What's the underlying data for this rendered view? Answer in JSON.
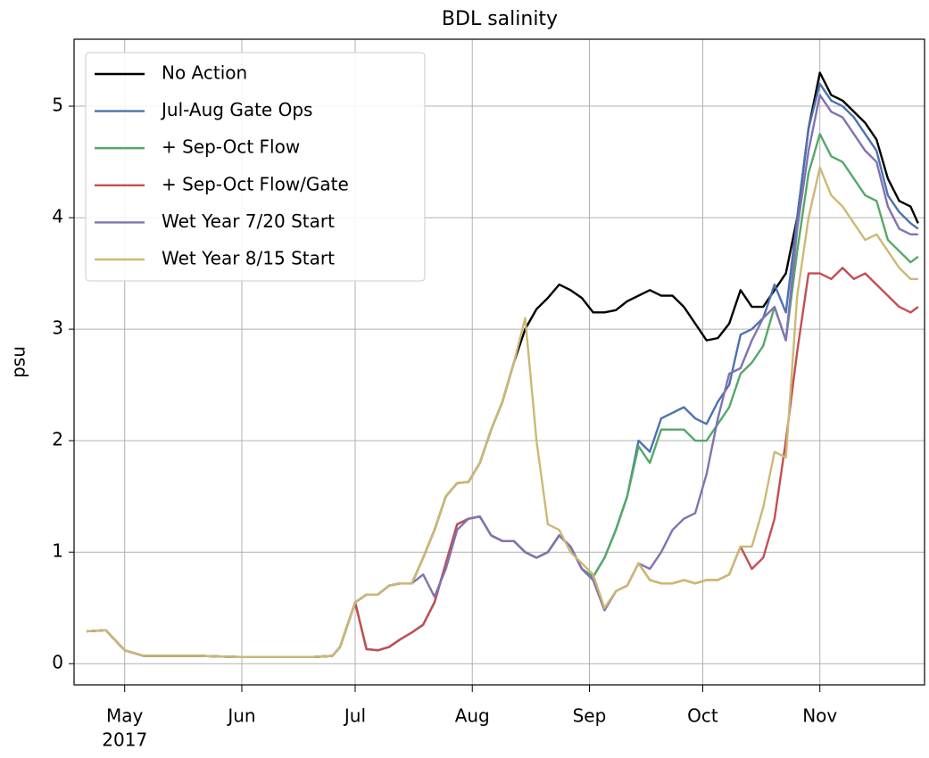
{
  "chart_data": {
    "type": "line",
    "title": "BDL salinity",
    "ylabel": "psu",
    "x_year_label": "2017",
    "x": [
      111,
      116,
      121,
      126,
      131,
      141,
      151,
      161,
      171,
      176,
      178,
      180,
      182,
      185,
      188,
      191,
      194,
      197,
      200,
      203,
      206,
      209,
      212,
      215,
      218,
      221,
      224,
      227,
      230,
      233,
      236,
      239,
      242,
      245,
      248,
      251,
      254,
      257,
      260,
      263,
      266,
      269,
      272,
      275,
      278,
      281,
      284,
      287,
      290,
      293,
      296,
      299,
      302,
      305,
      308,
      311,
      314,
      317,
      320,
      323,
      326,
      329,
      331
    ],
    "xlim": [
      107.6,
      332.7
    ],
    "xticks": [
      {
        "value": 121,
        "label": "May"
      },
      {
        "value": 152,
        "label": "Jun"
      },
      {
        "value": 182,
        "label": "Jul"
      },
      {
        "value": 213,
        "label": "Aug"
      },
      {
        "value": 244,
        "label": "Sep"
      },
      {
        "value": 274,
        "label": "Oct"
      },
      {
        "value": 305,
        "label": "Nov"
      }
    ],
    "ylim": [
      -0.19,
      5.6
    ],
    "yticks": [
      0,
      1,
      2,
      3,
      4,
      5
    ],
    "grid": true,
    "legend": "upper left",
    "series": [
      {
        "name": "No Action",
        "color": "#000000",
        "values": [
          0.29,
          0.3,
          0.12,
          0.07,
          0.07,
          0.07,
          0.06,
          0.06,
          0.06,
          0.07,
          0.15,
          0.35,
          0.55,
          0.62,
          0.62,
          0.7,
          0.72,
          0.72,
          0.95,
          1.2,
          1.5,
          1.62,
          1.63,
          1.8,
          2.1,
          2.35,
          2.7,
          3.0,
          3.18,
          3.28,
          3.4,
          3.35,
          3.28,
          3.15,
          3.15,
          3.17,
          3.25,
          3.3,
          3.35,
          3.3,
          3.3,
          3.2,
          3.05,
          2.9,
          2.92,
          3.05,
          3.35,
          3.2,
          3.2,
          3.35,
          3.5,
          4.0,
          4.8,
          5.3,
          5.1,
          5.05,
          4.95,
          4.85,
          4.7,
          4.35,
          4.15,
          4.1,
          3.95
        ]
      },
      {
        "name": "Jul-Aug Gate Ops",
        "color": "#4c72b0",
        "values": [
          0.29,
          0.3,
          0.12,
          0.07,
          0.07,
          0.07,
          0.06,
          0.06,
          0.06,
          0.07,
          0.15,
          0.35,
          0.55,
          0.13,
          0.12,
          0.15,
          0.22,
          0.28,
          0.35,
          0.55,
          0.9,
          1.25,
          1.3,
          1.32,
          1.15,
          1.1,
          1.1,
          1.0,
          0.95,
          1.0,
          1.15,
          1.05,
          0.85,
          0.78,
          0.95,
          1.2,
          1.5,
          2.0,
          1.9,
          2.2,
          2.25,
          2.3,
          2.2,
          2.15,
          2.35,
          2.5,
          2.95,
          3.0,
          3.1,
          3.4,
          3.15,
          4.0,
          4.8,
          5.2,
          5.05,
          5.0,
          4.9,
          4.75,
          4.6,
          4.2,
          4.05,
          3.95,
          3.9
        ]
      },
      {
        "name": "+ Sep-Oct Flow",
        "color": "#55a868",
        "values": [
          0.29,
          0.3,
          0.12,
          0.07,
          0.07,
          0.07,
          0.06,
          0.06,
          0.06,
          0.07,
          0.15,
          0.35,
          0.55,
          0.13,
          0.12,
          0.15,
          0.22,
          0.28,
          0.35,
          0.55,
          0.9,
          1.25,
          1.3,
          1.32,
          1.15,
          1.1,
          1.1,
          1.0,
          0.95,
          1.0,
          1.15,
          1.05,
          0.85,
          0.78,
          0.95,
          1.2,
          1.5,
          1.95,
          1.8,
          2.1,
          2.1,
          2.1,
          2.0,
          2.0,
          2.15,
          2.3,
          2.6,
          2.7,
          2.85,
          3.2,
          2.9,
          3.7,
          4.4,
          4.75,
          4.55,
          4.5,
          4.35,
          4.2,
          4.15,
          3.8,
          3.7,
          3.6,
          3.65
        ]
      },
      {
        "name": "+ Sep-Oct Flow/Gate",
        "color": "#c44e52",
        "values": [
          0.29,
          0.3,
          0.12,
          0.07,
          0.07,
          0.07,
          0.06,
          0.06,
          0.06,
          0.07,
          0.15,
          0.35,
          0.55,
          0.13,
          0.12,
          0.15,
          0.22,
          0.28,
          0.35,
          0.55,
          0.9,
          1.25,
          1.3,
          1.32,
          1.15,
          1.1,
          1.1,
          1.0,
          0.95,
          1.0,
          1.15,
          1.05,
          0.85,
          0.75,
          0.48,
          0.65,
          0.7,
          0.9,
          0.75,
          0.72,
          0.72,
          0.75,
          0.72,
          0.75,
          0.75,
          0.8,
          1.05,
          0.85,
          0.95,
          1.3,
          2.0,
          2.8,
          3.5,
          3.5,
          3.45,
          3.55,
          3.45,
          3.5,
          3.4,
          3.3,
          3.2,
          3.15,
          3.2
        ]
      },
      {
        "name": "Wet Year 7/20 Start",
        "color": "#8172b2",
        "values": [
          0.29,
          0.3,
          0.12,
          0.07,
          0.07,
          0.07,
          0.06,
          0.06,
          0.06,
          0.07,
          0.15,
          0.35,
          0.55,
          0.62,
          0.62,
          0.7,
          0.72,
          0.72,
          0.8,
          0.6,
          0.85,
          1.2,
          1.3,
          1.32,
          1.15,
          1.1,
          1.1,
          1.0,
          0.95,
          1.0,
          1.15,
          1.05,
          0.85,
          0.75,
          0.48,
          0.65,
          0.7,
          0.9,
          0.85,
          1.0,
          1.2,
          1.3,
          1.35,
          1.7,
          2.2,
          2.6,
          2.65,
          2.9,
          3.1,
          3.2,
          2.9,
          3.9,
          4.6,
          5.1,
          4.95,
          4.9,
          4.75,
          4.6,
          4.5,
          4.1,
          3.9,
          3.85,
          3.85
        ]
      },
      {
        "name": "Wet Year 8/15 Start",
        "color": "#ccb974",
        "values": [
          0.29,
          0.3,
          0.12,
          0.07,
          0.07,
          0.07,
          0.06,
          0.06,
          0.06,
          0.07,
          0.15,
          0.35,
          0.55,
          0.62,
          0.62,
          0.7,
          0.72,
          0.72,
          0.95,
          1.2,
          1.5,
          1.62,
          1.63,
          1.8,
          2.1,
          2.35,
          2.7,
          3.1,
          2.0,
          1.25,
          1.2,
          1.0,
          0.9,
          0.8,
          0.5,
          0.65,
          0.7,
          0.9,
          0.75,
          0.72,
          0.72,
          0.75,
          0.72,
          0.75,
          0.75,
          0.8,
          1.05,
          1.05,
          1.4,
          1.9,
          1.85,
          3.3,
          4.0,
          4.45,
          4.2,
          4.1,
          3.95,
          3.8,
          3.85,
          3.7,
          3.55,
          3.45,
          3.45
        ]
      }
    ]
  }
}
